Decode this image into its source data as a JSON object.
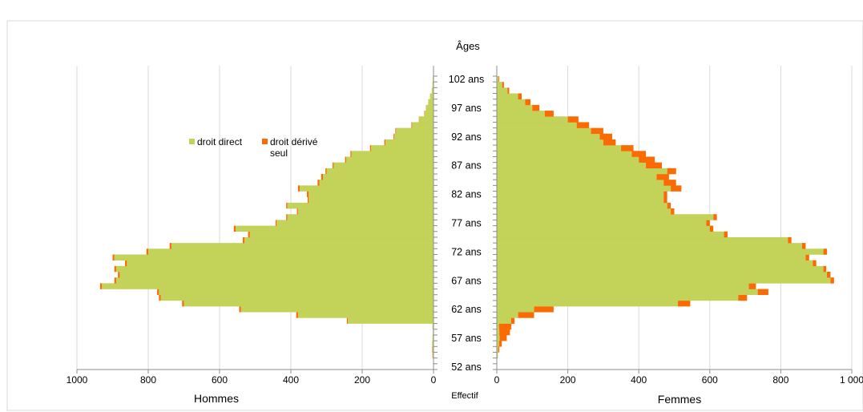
{
  "chart_data": {
    "type": "bar",
    "orientation": "horizontal-pyramid",
    "y_axis_title": "Âges",
    "x_axis_title": "Effectif",
    "left_panel_label": "Hommes",
    "right_panel_label": "Femmes",
    "age_tick_labels": [
      "102 ans",
      "97 ans",
      "92 ans",
      "87 ans",
      "82 ans",
      "77 ans",
      "72 ans",
      "67 ans",
      "62 ans",
      "57 ans",
      "52 ans"
    ],
    "men_tick_labels": [
      "1000",
      "800",
      "600",
      "400",
      "200",
      "0"
    ],
    "women_tick_labels": [
      "0",
      "200",
      "400",
      "600",
      "800",
      "1 000"
    ],
    "x_range": [
      0,
      1000
    ],
    "age_range": [
      52,
      103
    ],
    "legend": {
      "placement": "upper-left",
      "items": [
        {
          "name": "droit direct",
          "color": "#c3d35a"
        },
        {
          "name": "droit dérivé seul",
          "color": "#fb6b04"
        }
      ]
    },
    "grid": true,
    "ages": [
      52,
      53,
      54,
      55,
      56,
      57,
      58,
      59,
      60,
      61,
      62,
      63,
      64,
      65,
      66,
      67,
      68,
      69,
      70,
      71,
      72,
      73,
      74,
      75,
      76,
      77,
      78,
      79,
      80,
      81,
      82,
      83,
      84,
      85,
      86,
      87,
      88,
      89,
      90,
      91,
      92,
      93,
      94,
      95,
      96,
      97,
      98,
      99,
      100,
      101,
      102
    ],
    "men_direct": [
      0,
      1,
      2,
      3,
      4,
      3,
      2,
      3,
      240,
      380,
      540,
      700,
      765,
      770,
      930,
      890,
      880,
      890,
      860,
      895,
      800,
      735,
      530,
      515,
      555,
      440,
      410,
      380,
      410,
      350,
      350,
      375,
      320,
      310,
      300,
      280,
      245,
      230,
      175,
      135,
      110,
      105,
      60,
      40,
      25,
      20,
      15,
      10,
      5,
      3,
      2
    ],
    "men_derived": [
      0,
      0,
      1,
      1,
      0,
      0,
      0,
      0,
      3,
      5,
      5,
      5,
      5,
      5,
      5,
      5,
      5,
      5,
      5,
      5,
      5,
      5,
      5,
      5,
      5,
      3,
      3,
      3,
      3,
      3,
      5,
      5,
      5,
      5,
      3,
      3,
      3,
      3,
      3,
      3,
      2,
      2,
      2,
      1,
      1,
      1,
      0,
      0,
      0,
      0,
      0
    ],
    "women_direct": [
      0,
      1,
      3,
      4,
      6,
      8,
      7,
      6,
      40,
      60,
      105,
      510,
      680,
      735,
      710,
      940,
      930,
      920,
      890,
      870,
      920,
      860,
      820,
      640,
      600,
      590,
      610,
      490,
      480,
      470,
      470,
      490,
      470,
      450,
      480,
      420,
      400,
      380,
      350,
      300,
      290,
      265,
      225,
      200,
      135,
      100,
      80,
      60,
      30,
      15,
      5
    ],
    "women_derived": [
      0,
      0,
      0,
      3,
      8,
      20,
      30,
      35,
      10,
      45,
      55,
      35,
      25,
      30,
      20,
      10,
      10,
      8,
      10,
      10,
      10,
      10,
      10,
      10,
      10,
      10,
      10,
      10,
      10,
      10,
      10,
      30,
      35,
      35,
      25,
      45,
      45,
      40,
      35,
      35,
      35,
      35,
      35,
      30,
      25,
      20,
      15,
      10,
      5,
      5,
      2
    ]
  }
}
